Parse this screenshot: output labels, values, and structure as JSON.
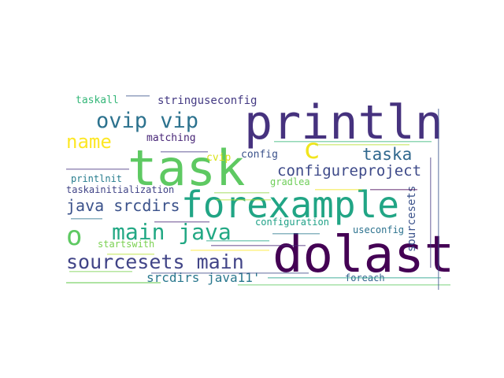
{
  "words": [
    {
      "text": "println",
      "color": "#46327e"
    },
    {
      "text": "task",
      "color": "#5ec962"
    },
    {
      "text": "forexample",
      "color": "#21a585"
    },
    {
      "text": "dolast",
      "color": "#440154"
    },
    {
      "text": "main java",
      "color": "#22a884"
    },
    {
      "text": "sourcesets main",
      "color": "#414487"
    },
    {
      "text": "ovip vip",
      "color": "#2c728e"
    },
    {
      "text": "c",
      "color": "#f1e51d"
    },
    {
      "text": "o",
      "color": "#5ec962"
    },
    {
      "text": "name",
      "color": "#fde725"
    },
    {
      "text": "taska",
      "color": "#31688e"
    },
    {
      "text": "configureproject",
      "color": "#3e4a89"
    },
    {
      "text": "java srcdirs",
      "color": "#3b528b"
    },
    {
      "text": "srcdirs java11'",
      "color": "#2a788e"
    },
    {
      "text": "stringuseconfig",
      "color": "#443a83"
    },
    {
      "text": "taskall",
      "color": "#35b779"
    },
    {
      "text": "matching",
      "color": "#482677"
    },
    {
      "text": "cvip",
      "color": "#d8e219"
    },
    {
      "text": "config",
      "color": "#3b528b"
    },
    {
      "text": "gradlea",
      "color": "#6ece58"
    },
    {
      "text": "printlnit",
      "color": "#287d8e"
    },
    {
      "text": "taskainitialization",
      "color": "#414487"
    },
    {
      "text": "configuration",
      "color": "#1fa187"
    },
    {
      "text": "useconfig",
      "color": "#2c728e"
    },
    {
      "text": "startswith",
      "color": "#7ad151"
    },
    {
      "text": "foreach",
      "color": "#33638d"
    },
    {
      "text": "sourcesets",
      "color": "#3b528b"
    }
  ]
}
